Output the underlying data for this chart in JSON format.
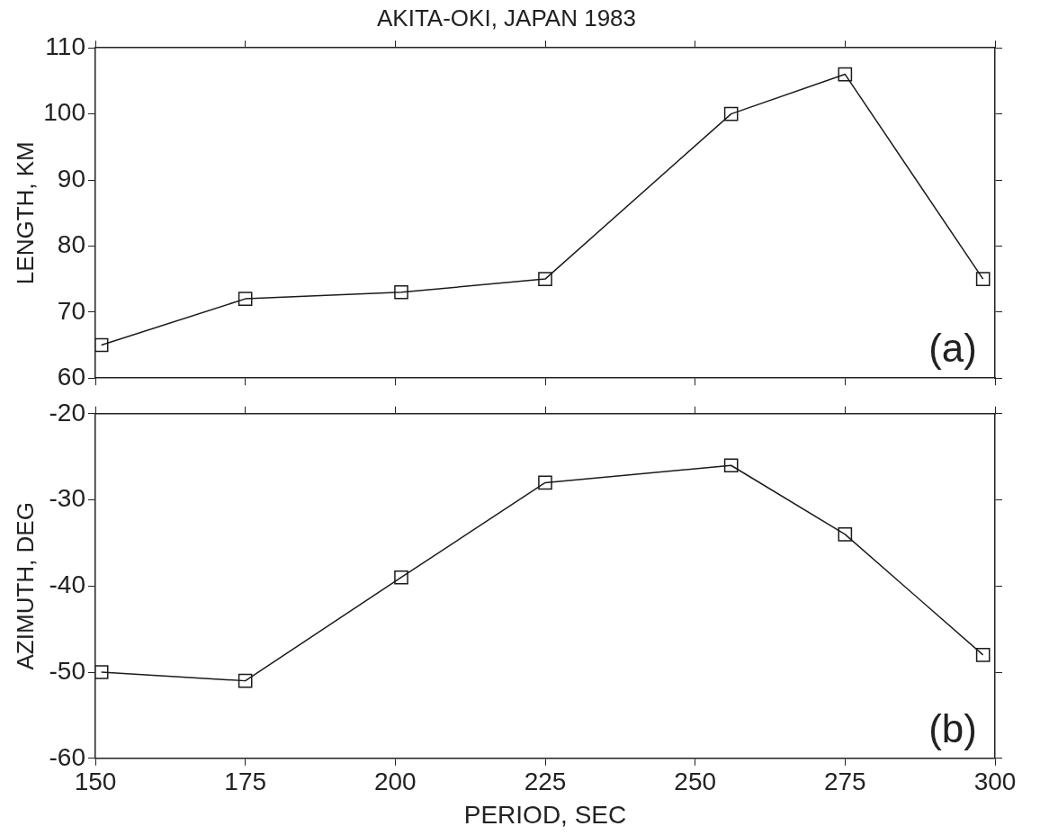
{
  "chart_data": [
    {
      "type": "line",
      "title": "AKITA-OKI, JAPAN 1983",
      "ylabel": "LENGTH, KM",
      "x": [
        151,
        175,
        201,
        225,
        256,
        275,
        298
      ],
      "series": [
        {
          "color": "#1a1a1a",
          "values": [
            65,
            72,
            73,
            75,
            100,
            106,
            75
          ]
        }
      ],
      "xlim": [
        150,
        300
      ],
      "xticks": [
        150,
        175,
        200,
        225,
        250,
        275,
        300
      ],
      "ylim": [
        60,
        110
      ],
      "yticks": [
        60,
        70,
        80,
        90,
        100,
        110
      ],
      "tick_labels": "y",
      "grid": false,
      "legend": false,
      "marker": "square",
      "line_style": "solid",
      "annotations": [
        "(a)"
      ]
    },
    {
      "type": "line",
      "xlabel": "PERIOD, SEC",
      "ylabel": "AZIMUTH, DEG",
      "x": [
        151,
        175,
        201,
        225,
        256,
        275,
        298
      ],
      "series": [
        {
          "color": "#1a1a1a",
          "values": [
            -50,
            -51,
            -39,
            -28,
            -26,
            -34,
            -48
          ]
        }
      ],
      "xlim": [
        150,
        300
      ],
      "xticks": [
        150,
        175,
        200,
        225,
        250,
        275,
        300
      ],
      "ylim": [
        -60,
        -20
      ],
      "yticks": [
        -60,
        -50,
        -40,
        -30,
        -20
      ],
      "grid": false,
      "legend": false,
      "marker": "square",
      "line_style": "solid",
      "annotations": [
        "(b)"
      ]
    }
  ]
}
